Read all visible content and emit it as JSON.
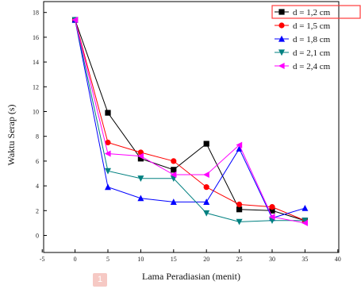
{
  "chart_data": {
    "type": "line",
    "title": "",
    "xlabel": "Lama Peradiasian (menit)",
    "ylabel": "Waktu Serap (s)",
    "xlim": [
      -5,
      40
    ],
    "ylim": [
      -1,
      19
    ],
    "xticks": [
      -5,
      0,
      5,
      10,
      15,
      20,
      25,
      30,
      35,
      40
    ],
    "yticks": [
      0,
      2,
      4,
      6,
      8,
      10,
      12,
      14,
      16,
      18
    ],
    "x": [
      0,
      5,
      10,
      15,
      20,
      25,
      30,
      35
    ],
    "grid": false,
    "legend_position": "top-right",
    "series": [
      {
        "name": "d = 1,2 cm",
        "color": "#000000",
        "marker": "square",
        "values": [
          17.4,
          9.9,
          6.2,
          5.3,
          7.4,
          2.1,
          2.0,
          1.2
        ]
      },
      {
        "name": "d = 1,5 cm",
        "color": "#ff0000",
        "marker": "circle",
        "values": [
          17.4,
          7.5,
          6.7,
          6.0,
          3.9,
          2.5,
          2.3,
          1.2
        ]
      },
      {
        "name": "d = 1,8 cm",
        "color": "#0000ff",
        "marker": "triangle-up",
        "values": [
          17.4,
          3.9,
          3.0,
          2.7,
          2.7,
          7.0,
          1.4,
          2.2
        ]
      },
      {
        "name": "d = 2,1 cm",
        "color": "#008080",
        "marker": "triangle-down",
        "values": [
          17.4,
          5.2,
          4.6,
          4.6,
          1.8,
          1.1,
          1.2,
          1.2
        ]
      },
      {
        "name": "d = 2,4 cm",
        "color": "#ff00ff",
        "marker": "triangle-left",
        "values": [
          17.4,
          6.6,
          6.4,
          4.9,
          4.9,
          7.3,
          1.5,
          1.0
        ]
      }
    ]
  },
  "badge": {
    "text": "1"
  }
}
